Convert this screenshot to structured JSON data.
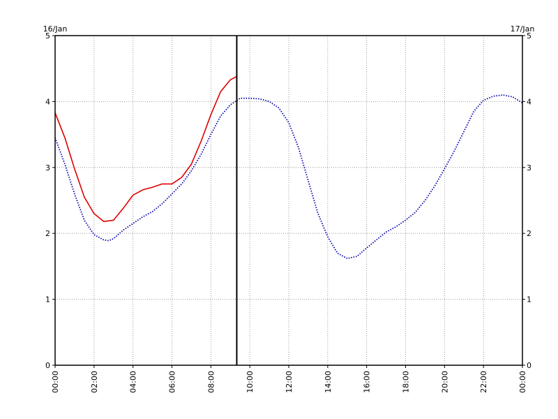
{
  "chart_data": {
    "type": "line",
    "title": "",
    "xlabel": "",
    "ylabel": "",
    "date_left": "16/Jan",
    "date_right": "17/Jan",
    "xlim": [
      0,
      24
    ],
    "ylim": [
      0,
      5
    ],
    "grid": true,
    "x_tick_labels": [
      "00:00",
      "02:00",
      "04:00",
      "06:00",
      "08:00",
      "10:00",
      "12:00",
      "14:00",
      "16:00",
      "18:00",
      "20:00",
      "22:00",
      "00:00"
    ],
    "y_tick_labels": [
      "0",
      "1",
      "2",
      "3",
      "4",
      "5"
    ],
    "current_time_marker": 9.33,
    "colors": {
      "observed": "#dd0000",
      "predicted": "#0000aa",
      "marker": "#000000"
    },
    "series": [
      {
        "x": [
          0,
          0.5,
          1,
          1.5,
          2,
          2.5,
          3,
          3.5,
          4,
          4.5,
          5,
          5.5,
          6,
          6.5,
          7,
          7.5,
          8,
          8.5,
          9,
          9.33
        ],
        "values": [
          3.83,
          3.45,
          2.98,
          2.55,
          2.3,
          2.18,
          2.2,
          2.38,
          2.58,
          2.66,
          2.7,
          2.75,
          2.75,
          2.85,
          3.05,
          3.4,
          3.8,
          4.15,
          4.33,
          4.38
        ]
      },
      {
        "x": [
          0,
          0.5,
          1,
          1.5,
          2,
          2.5,
          2.75,
          3,
          3.5,
          4,
          4.5,
          5,
          5.5,
          6,
          6.5,
          7,
          7.5,
          8,
          8.5,
          9,
          9.5,
          10,
          10.5,
          11,
          11.5,
          12,
          12.5,
          13,
          13.5,
          14,
          14.5,
          15,
          15.5,
          16,
          16.5,
          17,
          17.5,
          18,
          18.5,
          19,
          19.5,
          20,
          20.5,
          21,
          21.5,
          22,
          22.5,
          23,
          23.5,
          24
        ],
        "values": [
          3.45,
          3.05,
          2.6,
          2.2,
          1.98,
          1.9,
          1.89,
          1.92,
          2.05,
          2.15,
          2.25,
          2.33,
          2.45,
          2.6,
          2.75,
          2.95,
          3.2,
          3.5,
          3.78,
          3.95,
          4.05,
          4.05,
          4.04,
          4.0,
          3.9,
          3.68,
          3.3,
          2.8,
          2.3,
          1.95,
          1.7,
          1.62,
          1.65,
          1.78,
          1.9,
          2.02,
          2.1,
          2.2,
          2.32,
          2.5,
          2.72,
          2.98,
          3.25,
          3.55,
          3.85,
          4.02,
          4.08,
          4.1,
          4.07,
          3.98
        ]
      }
    ]
  }
}
